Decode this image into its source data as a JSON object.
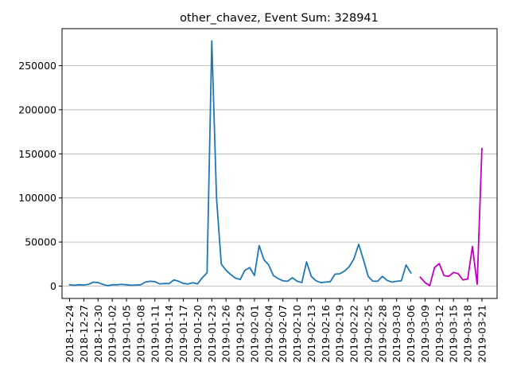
{
  "chart_data": {
    "type": "line",
    "title": "other_chavez, Event Sum: 328941",
    "xlabel": "",
    "ylabel": "",
    "x_start_date": "2018-12-24",
    "x_tick_labels": [
      "2018-12-24",
      "2018-12-27",
      "2018-12-30",
      "2019-01-02",
      "2019-01-05",
      "2019-01-08",
      "2019-01-11",
      "2019-01-14",
      "2019-01-17",
      "2019-01-20",
      "2019-01-23",
      "2019-01-26",
      "2019-01-29",
      "2019-02-01",
      "2019-02-04",
      "2019-02-07",
      "2019-02-10",
      "2019-02-13",
      "2019-02-16",
      "2019-02-19",
      "2019-02-22",
      "2019-02-25",
      "2019-02-28",
      "2019-03-03",
      "2019-03-06",
      "2019-03-09",
      "2019-03-12",
      "2019-03-15",
      "2019-03-18",
      "2019-03-21"
    ],
    "y_ticks": [
      0,
      50000,
      100000,
      150000,
      200000,
      250000
    ],
    "y_tick_labels": [
      "0",
      "50000",
      "100000",
      "150000",
      "200000",
      "250000"
    ],
    "ylim": [
      -14000,
      292000
    ],
    "xlim_day_offset": [
      -1.6,
      90.2
    ],
    "grid": "horizontal",
    "series": [
      {
        "color": "#1f77b4",
        "x": [
          "2018-12-24",
          "2018-12-25",
          "2018-12-26",
          "2018-12-27",
          "2018-12-28",
          "2018-12-29",
          "2018-12-30",
          "2018-12-31",
          "2019-01-01",
          "2019-01-02",
          "2019-01-03",
          "2019-01-04",
          "2019-01-05",
          "2019-01-06",
          "2019-01-07",
          "2019-01-08",
          "2019-01-09",
          "2019-01-10",
          "2019-01-11",
          "2019-01-12",
          "2019-01-13",
          "2019-01-14",
          "2019-01-15",
          "2019-01-16",
          "2019-01-17",
          "2019-01-18",
          "2019-01-19",
          "2019-01-20",
          "2019-01-21",
          "2019-01-22",
          "2019-01-23",
          "2019-01-24",
          "2019-01-25",
          "2019-01-26",
          "2019-01-27",
          "2019-01-28",
          "2019-01-29",
          "2019-01-30",
          "2019-01-31",
          "2019-02-01",
          "2019-02-02",
          "2019-02-03",
          "2019-02-04",
          "2019-02-05",
          "2019-02-06",
          "2019-02-07",
          "2019-02-08",
          "2019-02-09",
          "2019-02-10",
          "2019-02-11",
          "2019-02-12",
          "2019-02-13",
          "2019-02-14",
          "2019-02-15",
          "2019-02-16",
          "2019-02-17",
          "2019-02-18",
          "2019-02-19",
          "2019-02-20",
          "2019-02-21",
          "2019-02-22",
          "2019-02-23",
          "2019-02-24",
          "2019-02-25",
          "2019-02-26",
          "2019-02-27",
          "2019-02-28",
          "2019-03-01",
          "2019-03-02",
          "2019-03-03",
          "2019-03-04",
          "2019-03-05",
          "2019-03-06"
        ],
        "values": [
          1500,
          1000,
          1500,
          1200,
          2000,
          4500,
          4000,
          2000,
          500,
          1500,
          1500,
          2000,
          1500,
          1000,
          1200,
          1500,
          4500,
          5500,
          5000,
          2500,
          3000,
          2800,
          7000,
          5500,
          3000,
          2500,
          3800,
          2500,
          9500,
          15000,
          278000,
          100000,
          25000,
          18000,
          13000,
          9000,
          7500,
          18000,
          21000,
          12000,
          46000,
          30000,
          24000,
          12000,
          8500,
          6000,
          5500,
          9500,
          5500,
          4000,
          27500,
          11000,
          6000,
          4000,
          4500,
          5000,
          13500,
          14000,
          17000,
          22000,
          31000,
          47500,
          30000,
          11000,
          5500,
          5500,
          11000,
          6500,
          4500,
          5500,
          6000,
          24000,
          15000
        ]
      },
      {
        "color": "#bf00bf",
        "x": [
          "2019-03-08",
          "2019-03-09",
          "2019-03-10",
          "2019-03-11",
          "2019-03-12",
          "2019-03-13",
          "2019-03-14",
          "2019-03-15",
          "2019-03-16",
          "2019-03-17",
          "2019-03-18",
          "2019-03-19",
          "2019-03-20",
          "2019-03-21"
        ],
        "values": [
          10000,
          4000,
          500,
          21000,
          25500,
          12000,
          11000,
          15500,
          14000,
          7000,
          8000,
          45000,
          2000,
          156000
        ]
      }
    ]
  }
}
